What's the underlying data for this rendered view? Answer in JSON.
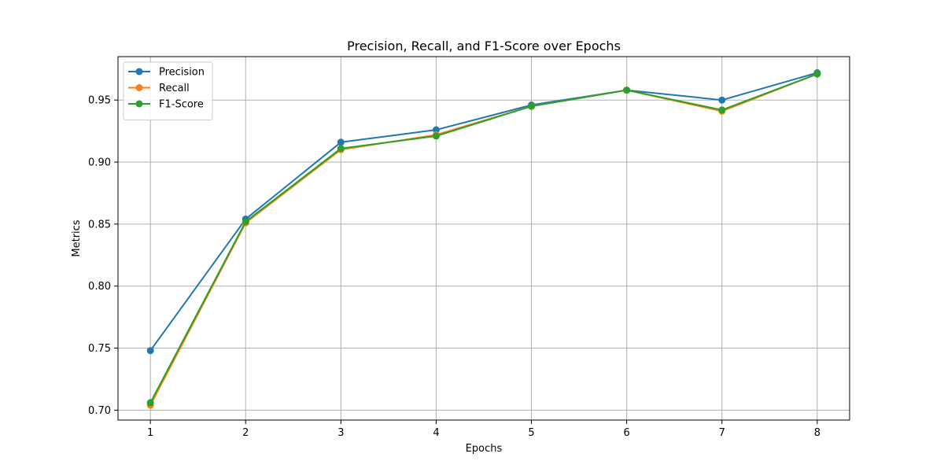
{
  "chart_data": {
    "type": "line",
    "title": "Precision, Recall, and F1-Score over Epochs",
    "xlabel": "Epochs",
    "ylabel": "Metrics",
    "x": [
      1,
      2,
      3,
      4,
      5,
      6,
      7,
      8
    ],
    "xlim": [
      0.66,
      8.34
    ],
    "ylim": [
      0.692,
      0.985
    ],
    "xticks": [
      1,
      2,
      3,
      4,
      5,
      6,
      7,
      8
    ],
    "yticks": [
      0.7,
      0.75,
      0.8,
      0.85,
      0.9,
      0.95
    ],
    "ytick_labels": [
      "0.70",
      "0.75",
      "0.80",
      "0.85",
      "0.90",
      "0.95"
    ],
    "grid": true,
    "legend_position": "top-left",
    "series": [
      {
        "name": "Precision",
        "color": "#1f77b4",
        "values": [
          0.748,
          0.854,
          0.916,
          0.926,
          0.946,
          0.958,
          0.95,
          0.972
        ]
      },
      {
        "name": "Recall",
        "color": "#ff7f0e",
        "values": [
          0.704,
          0.851,
          0.91,
          0.922,
          0.945,
          0.958,
          0.941,
          0.971
        ]
      },
      {
        "name": "F1-Score",
        "color": "#2ca02c",
        "values": [
          0.706,
          0.852,
          0.911,
          0.921,
          0.945,
          0.958,
          0.942,
          0.971
        ]
      }
    ]
  }
}
